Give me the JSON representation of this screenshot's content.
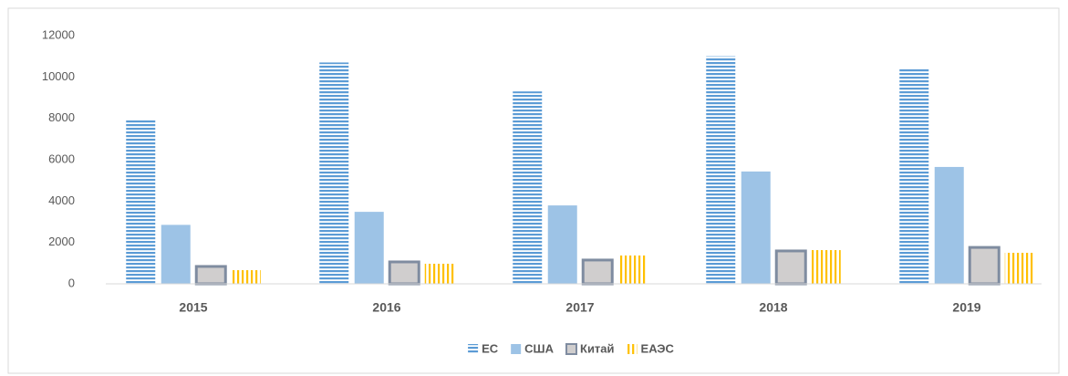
{
  "chart_data": {
    "type": "bar",
    "categories": [
      "2015",
      "2016",
      "2017",
      "2018",
      "2019"
    ],
    "series": [
      {
        "name": "ЕС",
        "color": "#5b9bd5",
        "fill_style": "horizontal-stripes",
        "values": [
          7900,
          10700,
          9300,
          11000,
          10400
        ]
      },
      {
        "name": "США",
        "color": "#9dc3e6",
        "fill_style": "solid",
        "values": [
          2850,
          3480,
          3790,
          5430,
          5650
        ]
      },
      {
        "name": "Китай",
        "color": "#d0cece",
        "border_color": "#7f8ca0",
        "fill_style": "solid",
        "values": [
          840,
          1060,
          1150,
          1590,
          1760
        ]
      },
      {
        "name": "ЕАЭС",
        "color": "#ffc000",
        "fill_style": "vertical-stripes",
        "values": [
          660,
          970,
          1370,
          1630,
          1500
        ]
      }
    ],
    "ylim": [
      0,
      12000
    ],
    "yticks": [
      0,
      2000,
      4000,
      6000,
      8000,
      10000,
      12000
    ],
    "grid": false,
    "legend": "bottom"
  }
}
